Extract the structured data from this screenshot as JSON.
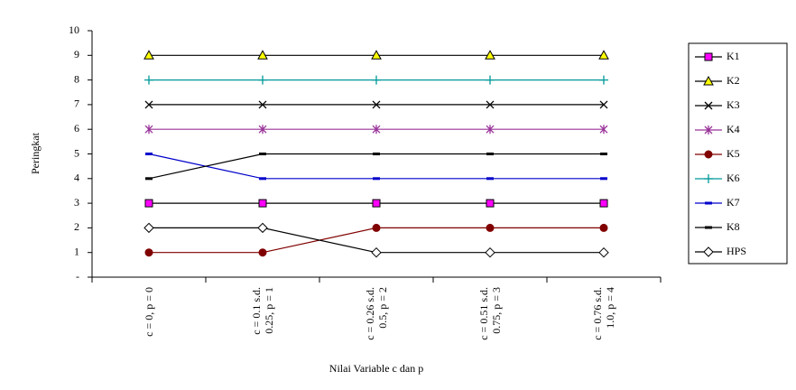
{
  "chart_data": {
    "type": "line",
    "x_label": "Nilai Variable c dan p",
    "y_label": "Peringkat",
    "categories": [
      "c = 0, p = 0",
      "c = 0.1 s.d. 0.25, p = 1",
      "c = 0.26 s.d. 0.5, p = 2",
      "c = 0.51 s.d. 0.75, p = 3",
      "c = 0.76 s.d. 1.0, p = 4"
    ],
    "ylim": [
      0,
      10
    ],
    "yticks": [
      {
        "value": 0,
        "label": "-"
      },
      1,
      2,
      3,
      4,
      5,
      6,
      7,
      8,
      9,
      10
    ],
    "grid": false,
    "legend": "right",
    "series": [
      {
        "name": "K1",
        "color": "#ff00ff",
        "line_color": "#000000",
        "marker": "square",
        "values": [
          3,
          3,
          3,
          3,
          3
        ]
      },
      {
        "name": "K2",
        "color": "#ffff00",
        "line_color": "#000000",
        "marker": "triangle",
        "values": [
          9,
          9,
          9,
          9,
          9
        ]
      },
      {
        "name": "K3",
        "color": "#000000",
        "line_color": "#000000",
        "marker": "x",
        "values": [
          7,
          7,
          7,
          7,
          7
        ]
      },
      {
        "name": "K4",
        "color": "#993399",
        "line_color": "#993399",
        "marker": "star",
        "values": [
          6,
          6,
          6,
          6,
          6
        ]
      },
      {
        "name": "K5",
        "color": "#800000",
        "line_color": "#800000",
        "marker": "circle",
        "values": [
          1,
          1,
          2,
          2,
          2
        ]
      },
      {
        "name": "K6",
        "color": "#009999",
        "line_color": "#009999",
        "marker": "plus",
        "values": [
          8,
          8,
          8,
          8,
          8
        ]
      },
      {
        "name": "K7",
        "color": "#0000cc",
        "line_color": "#0000cc",
        "marker": "dash",
        "values": [
          5,
          4,
          4,
          4,
          4
        ]
      },
      {
        "name": "K8",
        "color": "#000000",
        "line_color": "#000000",
        "marker": "dash",
        "values": [
          4,
          5,
          5,
          5,
          5
        ]
      },
      {
        "name": "HPS",
        "color": "#ffffff",
        "line_color": "#000000",
        "marker": "diamond",
        "values": [
          2,
          2,
          1,
          1,
          1
        ]
      }
    ]
  }
}
